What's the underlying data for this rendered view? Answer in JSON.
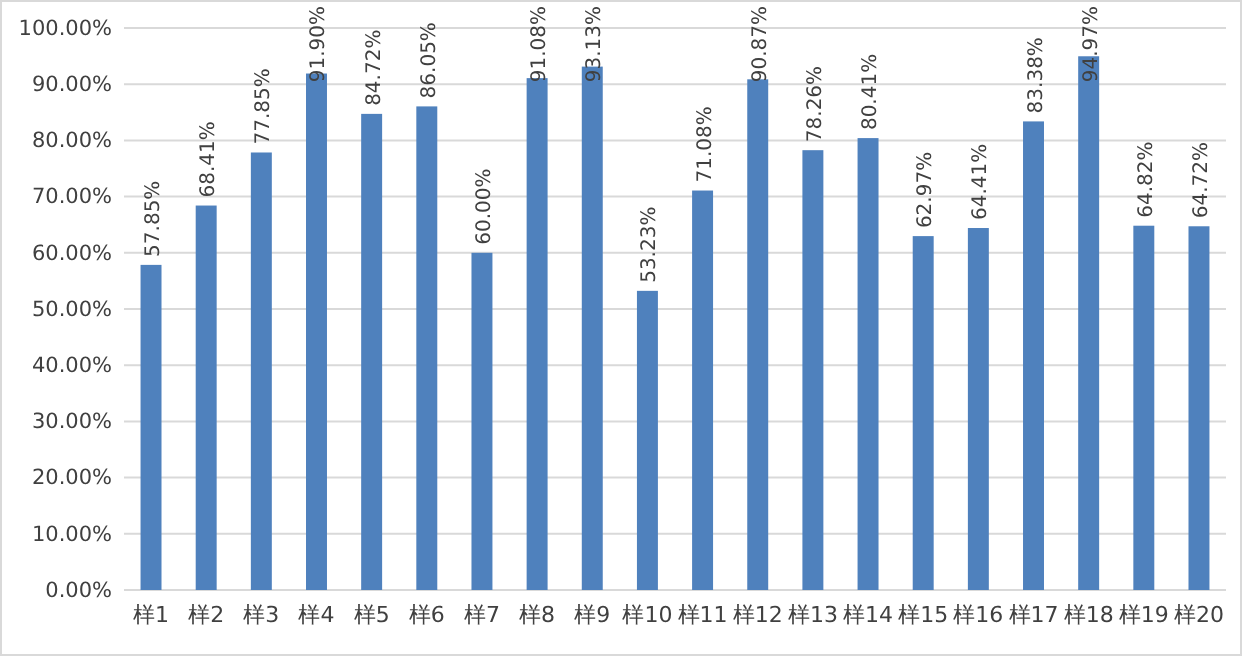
{
  "chart_data": {
    "type": "bar",
    "categories": [
      "样1",
      "样2",
      "样3",
      "样4",
      "样5",
      "样6",
      "样7",
      "样8",
      "样9",
      "样10",
      "样11",
      "样12",
      "样13",
      "样14",
      "样15",
      "样16",
      "样17",
      "样18",
      "样19",
      "样20"
    ],
    "values": [
      57.85,
      68.41,
      77.85,
      91.9,
      84.72,
      86.05,
      60.0,
      91.08,
      93.13,
      53.23,
      71.08,
      90.87,
      78.26,
      80.41,
      62.97,
      64.41,
      83.38,
      94.97,
      64.82,
      64.72
    ],
    "value_labels": [
      "57.85%",
      "68.41%",
      "77.85%",
      "91.90%",
      "84.72%",
      "86.05%",
      "60.00%",
      "91.08%",
      "93.13%",
      "53.23%",
      "71.08%",
      "90.87%",
      "78.26%",
      "80.41%",
      "62.97%",
      "64.41%",
      "83.38%",
      "94.97%",
      "64.82%",
      "64.72%"
    ],
    "color": "#4f81bd",
    "ylim": [
      0,
      100
    ],
    "yticks": [
      {
        "value": 0,
        "label": "0.00%"
      },
      {
        "value": 10,
        "label": "10.00%"
      },
      {
        "value": 20,
        "label": "20.00%"
      },
      {
        "value": 30,
        "label": "30.00%"
      },
      {
        "value": 40,
        "label": "40.00%"
      },
      {
        "value": 50,
        "label": "50.00%"
      },
      {
        "value": 60,
        "label": "60.00%"
      },
      {
        "value": 70,
        "label": "70.00%"
      },
      {
        "value": 80,
        "label": "80.00%"
      },
      {
        "value": 90,
        "label": "90.00%"
      },
      {
        "value": 100,
        "label": "100.00%"
      }
    ],
    "grid": "y"
  }
}
